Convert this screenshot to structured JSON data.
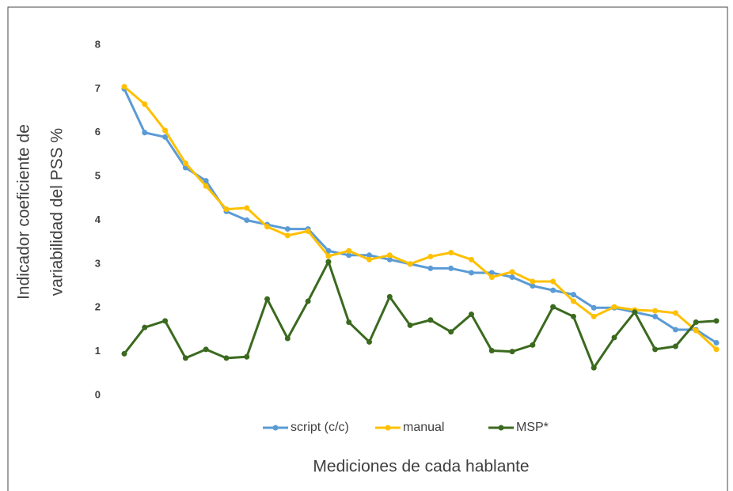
{
  "chart_data": {
    "type": "line",
    "y_label": [
      "Indicador coeficiente de",
      "variabilidad del PSS %"
    ],
    "x_label": "Mediciones de cada hablante",
    "categories": [
      null,
      null,
      null,
      null,
      null,
      null,
      null,
      null,
      null,
      null,
      null,
      null,
      null,
      null,
      null,
      null,
      null,
      null,
      null,
      null,
      null,
      null,
      null,
      null,
      null,
      null,
      null,
      null,
      null,
      null
    ],
    "series": [
      {
        "name": "script (c/c)",
        "color": "#5b9bd5",
        "values": [
          7.0,
          6.0,
          5.9,
          5.2,
          4.9,
          4.2,
          4.0,
          3.9,
          3.8,
          3.8,
          3.3,
          3.2,
          3.2,
          3.1,
          3.0,
          2.9,
          2.9,
          2.8,
          2.8,
          2.7,
          2.5,
          2.4,
          2.3,
          2.0,
          2.0,
          1.9,
          1.8,
          1.5,
          1.5,
          1.2
        ]
      },
      {
        "name": "manual",
        "color": "#ffc000",
        "values": [
          7.05,
          6.65,
          6.05,
          5.3,
          4.78,
          4.25,
          4.28,
          3.85,
          3.65,
          3.75,
          3.18,
          3.3,
          3.1,
          3.2,
          3.0,
          3.17,
          3.26,
          3.1,
          2.7,
          2.82,
          2.6,
          2.6,
          2.15,
          1.8,
          2.02,
          1.95,
          1.93,
          1.88,
          1.48,
          1.05
        ]
      },
      {
        "name": "MSP*",
        "color": "#3b6a1f",
        "values": [
          0.95,
          1.55,
          1.7,
          0.85,
          1.05,
          0.85,
          0.88,
          2.2,
          1.3,
          2.15,
          3.05,
          1.67,
          1.22,
          2.25,
          1.6,
          1.72,
          1.45,
          1.85,
          1.02,
          1.0,
          1.15,
          2.02,
          1.8,
          0.63,
          1.32,
          1.9,
          1.05,
          1.12,
          1.67,
          1.7
        ]
      }
    ],
    "ylim": [
      0,
      8
    ],
    "yticks": [
      0,
      1,
      2,
      3,
      4,
      5,
      6,
      7,
      8
    ],
    "grid": false,
    "legend": "bottom"
  }
}
